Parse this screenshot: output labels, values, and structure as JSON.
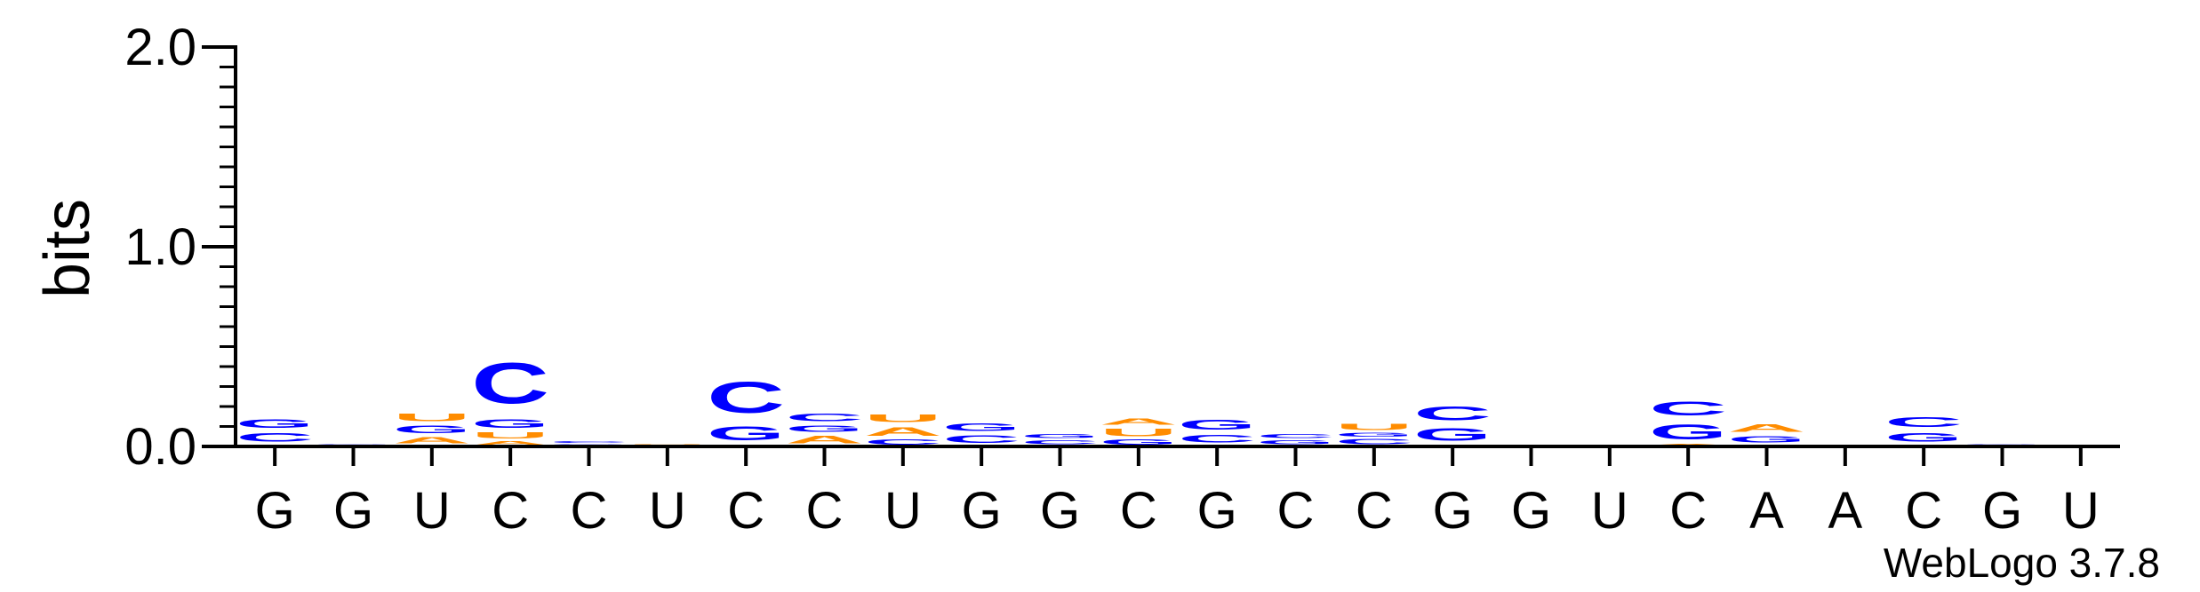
{
  "chart_data": {
    "type": "sequence-logo",
    "ylabel": "bits",
    "ylim": [
      0,
      2.0
    ],
    "yticks": [
      "0.0",
      "1.0",
      "2.0"
    ],
    "credit": "WebLogo 3.7.8",
    "colors": {
      "A": "#ff8c00",
      "U": "#ff8c00",
      "C": "#0000ff",
      "G": "#0000ff"
    },
    "x_labels": [
      "G",
      "G",
      "U",
      "C",
      "C",
      "U",
      "C",
      "C",
      "U",
      "G",
      "G",
      "C",
      "G",
      "C",
      "C",
      "G",
      "G",
      "U",
      "C",
      "A",
      "A",
      "C",
      "G",
      "U"
    ],
    "positions": [
      [
        {
          "l": "U",
          "v": 0.005
        },
        {
          "l": "A",
          "v": 0.005
        },
        {
          "l": "C",
          "v": 0.07
        },
        {
          "l": "G",
          "v": 0.07
        }
      ],
      [
        {
          "l": "A",
          "v": 0.003
        },
        {
          "l": "C",
          "v": 0.004
        },
        {
          "l": "G",
          "v": 0.004
        }
      ],
      [
        {
          "l": "C",
          "v": 0.005
        },
        {
          "l": "A",
          "v": 0.05
        },
        {
          "l": "G",
          "v": 0.06
        },
        {
          "l": "U",
          "v": 0.06
        }
      ],
      [
        {
          "l": "A",
          "v": 0.03
        },
        {
          "l": "U",
          "v": 0.05
        },
        {
          "l": "G",
          "v": 0.07
        },
        {
          "l": "C",
          "v": 0.33
        }
      ],
      [
        {
          "l": "U",
          "v": 0.004
        },
        {
          "l": "A",
          "v": 0.004
        },
        {
          "l": "G",
          "v": 0.006
        },
        {
          "l": "C",
          "v": 0.015
        }
      ],
      [
        {
          "l": "A",
          "v": 0.003
        },
        {
          "l": "G",
          "v": 0.003
        },
        {
          "l": "C",
          "v": 0.004
        },
        {
          "l": "U",
          "v": 0.006
        }
      ],
      [
        {
          "l": "U",
          "v": 0.004
        },
        {
          "l": "A",
          "v": 0.006
        },
        {
          "l": "G",
          "v": 0.11
        },
        {
          "l": "C",
          "v": 0.25
        }
      ],
      [
        {
          "l": "U",
          "v": 0.004
        },
        {
          "l": "A",
          "v": 0.06
        },
        {
          "l": "G",
          "v": 0.05
        },
        {
          "l": "C",
          "v": 0.06
        }
      ],
      [
        {
          "l": "C",
          "v": 0.04
        },
        {
          "l": "A",
          "v": 0.07
        },
        {
          "l": "U",
          "v": 0.06
        }
      ],
      [
        {
          "l": "U",
          "v": 0.003
        },
        {
          "l": "A",
          "v": 0.003
        },
        {
          "l": "C",
          "v": 0.06
        },
        {
          "l": "G",
          "v": 0.06
        }
      ],
      [
        {
          "l": "A",
          "v": 0.003
        },
        {
          "l": "U",
          "v": 0.003
        },
        {
          "l": "C",
          "v": 0.03
        },
        {
          "l": "G",
          "v": 0.03
        }
      ],
      [
        {
          "l": "G",
          "v": 0.04
        },
        {
          "l": "U",
          "v": 0.06
        },
        {
          "l": "A",
          "v": 0.05
        }
      ],
      [
        {
          "l": "U",
          "v": 0.004
        },
        {
          "l": "A",
          "v": 0.004
        },
        {
          "l": "C",
          "v": 0.06
        },
        {
          "l": "G",
          "v": 0.08
        }
      ],
      [
        {
          "l": "U",
          "v": 0.003
        },
        {
          "l": "A",
          "v": 0.003
        },
        {
          "l": "G",
          "v": 0.03
        },
        {
          "l": "C",
          "v": 0.03
        }
      ],
      [
        {
          "l": "A",
          "v": 0.003
        },
        {
          "l": "C",
          "v": 0.04
        },
        {
          "l": "G",
          "v": 0.03
        },
        {
          "l": "U",
          "v": 0.05
        }
      ],
      [
        {
          "l": "U",
          "v": 0.004
        },
        {
          "l": "A",
          "v": 0.005
        },
        {
          "l": "G",
          "v": 0.1
        },
        {
          "l": "C",
          "v": 0.11
        }
      ],
      [
        {
          "l": "A",
          "v": 0.002
        },
        {
          "l": "C",
          "v": 0.003
        }
      ],
      [
        {
          "l": "C",
          "v": 0.002
        }
      ],
      [
        {
          "l": "U",
          "v": 0.005
        },
        {
          "l": "A",
          "v": 0.008
        },
        {
          "l": "G",
          "v": 0.12
        },
        {
          "l": "C",
          "v": 0.11
        }
      ],
      [
        {
          "l": "C",
          "v": 0.005
        },
        {
          "l": "U",
          "v": 0.006
        },
        {
          "l": "G",
          "v": 0.05
        },
        {
          "l": "A",
          "v": 0.06
        }
      ],
      [
        {
          "l": "U",
          "v": 0.004
        },
        {
          "l": "A",
          "v": 0.004
        }
      ],
      [
        {
          "l": "U",
          "v": 0.005
        },
        {
          "l": "A",
          "v": 0.006
        },
        {
          "l": "G",
          "v": 0.07
        },
        {
          "l": "C",
          "v": 0.08
        }
      ],
      [
        {
          "l": "A",
          "v": 0.003
        },
        {
          "l": "C",
          "v": 0.004
        },
        {
          "l": "G",
          "v": 0.006
        }
      ],
      [
        {
          "l": "A",
          "v": 0.003
        },
        {
          "l": "U",
          "v": 0.006
        }
      ]
    ]
  }
}
